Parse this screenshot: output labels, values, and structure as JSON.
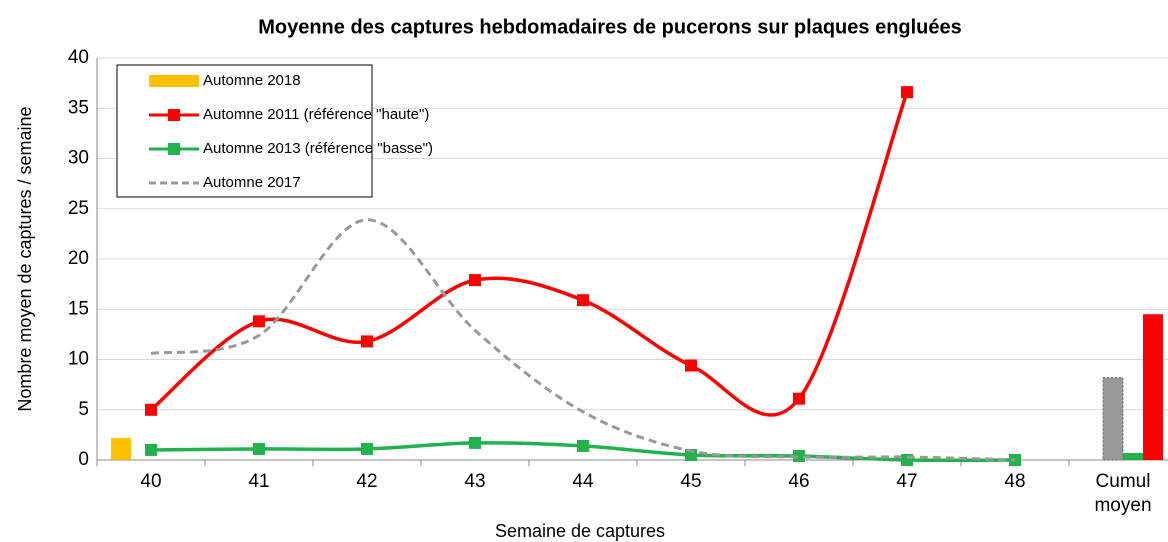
{
  "chart_data": {
    "type": "line",
    "title": "Moyenne des captures hebdomadaires de pucerons sur plaques engluées",
    "x_label": "Semaine de captures",
    "y_label": "Nombre moyen de captures / semaine",
    "categories": [
      "40",
      "41",
      "42",
      "43",
      "44",
      "45",
      "46",
      "47",
      "48",
      "Cumul moyen"
    ],
    "series": [
      {
        "name": "Automne 2018",
        "color": "#ffc000",
        "style": "bar",
        "values": [
          2.2,
          null,
          null,
          null,
          null,
          null,
          null,
          null,
          null,
          null
        ]
      },
      {
        "name": "Automne 2011 (référence \"haute\")",
        "color": "#ff0000",
        "style": "line",
        "values": [
          5.0,
          13.8,
          11.8,
          17.9,
          15.9,
          9.4,
          6.1,
          36.6,
          null,
          14.5
        ]
      },
      {
        "name": "Automne 2013 (référence \"basse\")",
        "color": "#22b14c",
        "style": "line",
        "values": [
          1.0,
          1.1,
          1.1,
          1.7,
          1.4,
          0.5,
          0.4,
          0.0,
          0.0,
          0.7
        ]
      },
      {
        "name": "Automne 2017",
        "color": "#999999",
        "style": "dashed",
        "values": [
          10.6,
          12.4,
          23.9,
          12.9,
          4.8,
          0.9,
          0.3,
          0.3,
          0.0,
          8.2
        ]
      }
    ],
    "ylim": [
      0,
      40
    ],
    "yticks": [
      0,
      5,
      10,
      15,
      20,
      25,
      30,
      35,
      40
    ],
    "grid": true,
    "legend": "upper left"
  }
}
